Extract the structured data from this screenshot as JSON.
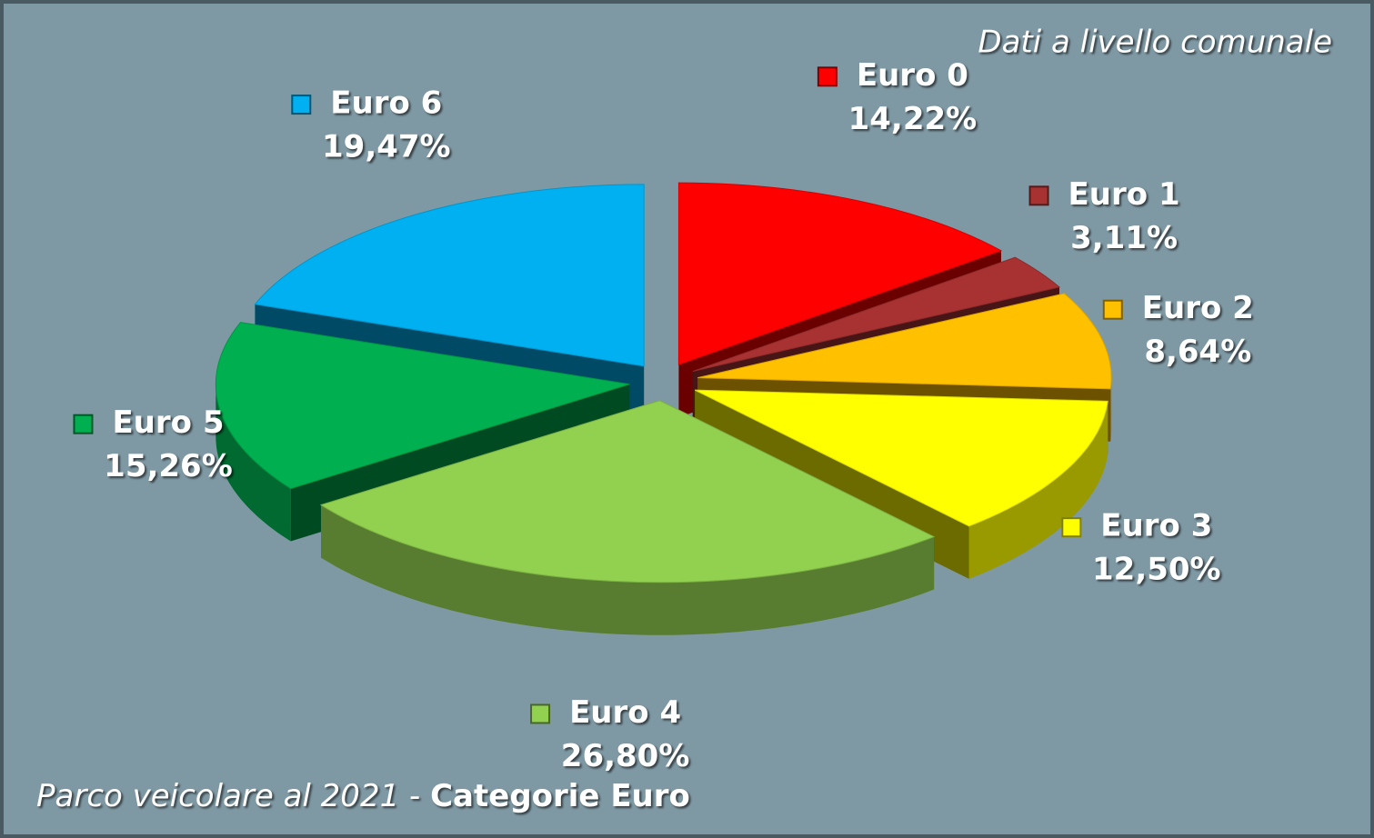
{
  "chart_data": {
    "type": "pie3d",
    "title": {
      "lead": "Parco veicolare al 2021",
      "separator": "-",
      "emphasis": "Categorie Euro"
    },
    "subtitle": "Dati a livello comunale",
    "categories": [
      "Euro 0",
      "Euro 1",
      "Euro 2",
      "Euro 3",
      "Euro 4",
      "Euro 5",
      "Euro 6"
    ],
    "values": [
      14.22,
      3.11,
      8.64,
      12.5,
      26.8,
      15.26,
      19.47
    ],
    "value_labels": [
      "14,22%",
      "3,11%",
      "8,64%",
      "12,50%",
      "26,80%",
      "15,26%",
      "19,47%"
    ],
    "colors": [
      "#ff0000",
      "#a83232",
      "#ffc000",
      "#ffff00",
      "#92d050",
      "#00b050",
      "#00b0f0"
    ]
  }
}
